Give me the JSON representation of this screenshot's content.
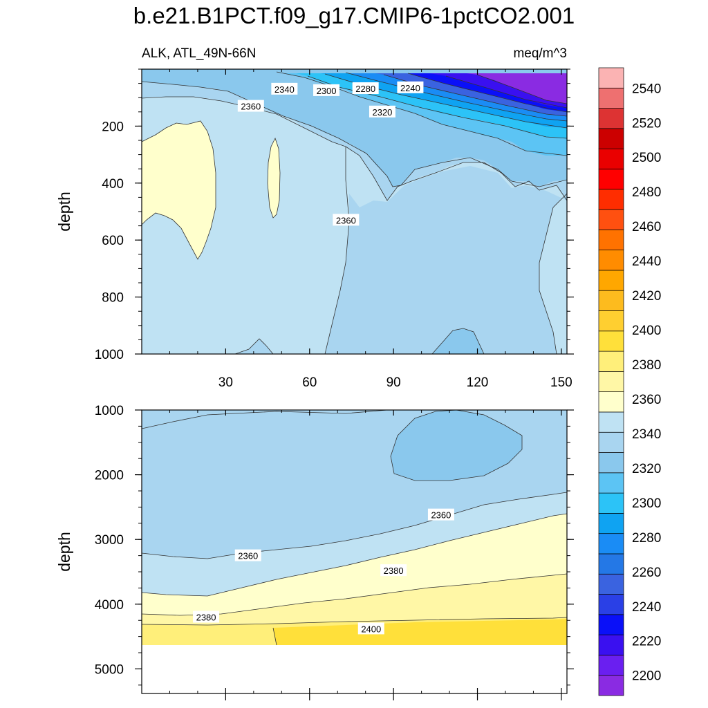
{
  "title": "b.e21.B1PCT.f09_g17.CMIP6-1pctCO2.001",
  "chart_data": {
    "type": "contour",
    "variable_label": "ALK, ATL_49N-66N",
    "units": "meq/m^3",
    "x_ticks": [
      30,
      60,
      90,
      120,
      150
    ],
    "x_range": [
      0,
      152
    ],
    "colorbar": {
      "levels": [
        2200,
        2220,
        2240,
        2260,
        2280,
        2300,
        2320,
        2340,
        2360,
        2380,
        2400,
        2420,
        2440,
        2460,
        2480,
        2500,
        2520,
        2540
      ],
      "colors": [
        "#8a2be2",
        "#6a1ff0",
        "#3a10f0",
        "#0a10f8",
        "#2a40e6",
        "#3a63e0",
        "#2478e6",
        "#1a8cf5",
        "#0fa3f2",
        "#2cc3f7",
        "#5cc4f4",
        "#8ac8ed",
        "#a9d5f0",
        "#bfe2f3",
        "#ffffcc",
        "#fff7a6",
        "#ffef7a",
        "#ffe03a",
        "#ffcf30",
        "#fdbb1e",
        "#ffa700",
        "#ff8c00",
        "#ff7200",
        "#ff5010",
        "#ff2d00",
        "#ff0000",
        "#ea0000",
        "#cc0000",
        "#dd3333",
        "#ee7070",
        "#fbb3b3"
      ],
      "tick_labels": [
        "2200",
        "2220",
        "2240",
        "2260",
        "2280",
        "2300",
        "2320",
        "2340",
        "2360",
        "2380",
        "2400",
        "2420",
        "2440",
        "2460",
        "2480",
        "2500",
        "2520",
        "2540"
      ]
    },
    "panels": [
      {
        "name": "upper",
        "ylabel": "depth",
        "y_ticks": [
          200,
          400,
          600,
          800,
          1000
        ],
        "y_range": [
          0,
          1000
        ],
        "contour_labels": [
          {
            "text": "2340",
            "x": 51,
            "y": 70
          },
          {
            "text": "2300",
            "x": 66,
            "y": 75
          },
          {
            "text": "2280",
            "x": 80,
            "y": 68
          },
          {
            "text": "2240",
            "x": 96,
            "y": 65
          },
          {
            "text": "2360",
            "x": 39,
            "y": 130
          },
          {
            "text": "2320",
            "x": 86,
            "y": 150
          },
          {
            "text": "2360",
            "x": 73,
            "y": 530
          }
        ]
      },
      {
        "name": "lower",
        "ylabel": "depth",
        "y_ticks": [
          1000,
          2000,
          3000,
          4000,
          5000
        ],
        "y_range": [
          1000,
          5380
        ],
        "contour_labels": [
          {
            "text": "2360",
            "x": 107,
            "y": 2620
          },
          {
            "text": "2360",
            "x": 38,
            "y": 3250
          },
          {
            "text": "2380",
            "x": 90,
            "y": 3480
          },
          {
            "text": "2380",
            "x": 23,
            "y": 4200
          },
          {
            "text": "2400",
            "x": 82,
            "y": 4380
          }
        ]
      }
    ]
  }
}
